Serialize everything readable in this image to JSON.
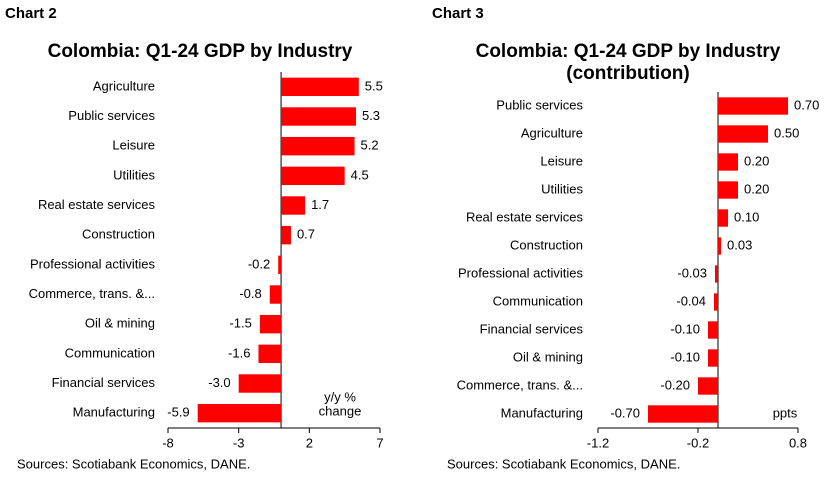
{
  "chart_data": [
    {
      "type": "bar",
      "orientation": "horizontal",
      "label": "Chart 2",
      "title": [
        "Colombia: Q1-24 GDP by Industry"
      ],
      "categories": [
        "Agriculture",
        "Public services",
        "Leisure",
        "Utilities",
        "Real estate services",
        "Construction",
        "Professional activities",
        "Commerce, trans. &...",
        "Oil & mining",
        "Communication",
        "Financial services",
        "Manufacturing"
      ],
      "values": [
        5.5,
        5.3,
        5.2,
        4.5,
        1.7,
        0.7,
        -0.2,
        -0.8,
        -1.5,
        -1.6,
        -3.0,
        -5.9
      ],
      "value_labels": [
        "5.5",
        "5.3",
        "5.2",
        "4.5",
        "1.7",
        "0.7",
        "-0.2",
        "-0.8",
        "-1.5",
        "-1.6",
        "-3.0",
        "-5.9"
      ],
      "color": "#ff0000",
      "xlim": [
        -8,
        7
      ],
      "xticks": [
        -8,
        -3,
        2,
        7
      ],
      "unit_label": [
        "y/y %",
        "change"
      ],
      "source": "Sources: Scotiabank Economics, DANE."
    },
    {
      "type": "bar",
      "orientation": "horizontal",
      "label": "Chart 3",
      "title": [
        "Colombia: Q1-24 GDP by Industry",
        "(contribution)"
      ],
      "categories": [
        "Public services",
        "Agriculture",
        "Leisure",
        "Utilities",
        "Real estate services",
        "Construction",
        "Professional activities",
        "Communication",
        "Financial services",
        "Oil & mining",
        "Commerce, trans. &...",
        "Manufacturing"
      ],
      "values": [
        0.7,
        0.5,
        0.2,
        0.2,
        0.1,
        0.03,
        -0.03,
        -0.04,
        -0.1,
        -0.1,
        -0.2,
        -0.7
      ],
      "value_labels": [
        "0.70",
        "0.50",
        "0.20",
        "0.20",
        "0.10",
        "0.03",
        "-0.03",
        "-0.04",
        "-0.10",
        "-0.10",
        "-0.20",
        "-0.70"
      ],
      "color": "#ff0000",
      "xlim": [
        -1.2,
        0.8
      ],
      "xticks": [
        -1.2,
        -0.2,
        0.8
      ],
      "unit_label": [
        "ppts"
      ],
      "source": "Sources: Scotiabank Economics, DANE."
    }
  ]
}
